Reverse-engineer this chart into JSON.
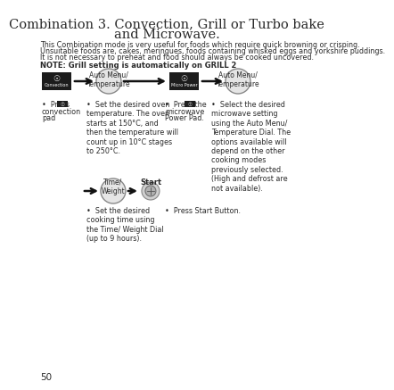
{
  "title_line1": "Combination 3. Convection, Grill or Turbo bake",
  "title_line2": "and Microwave.",
  "title_fontsize": 10.5,
  "body_text_line1": "This Combination mode is very useful for foods which require quick browning or crisping.",
  "body_text_line2": "Unsuitable foods are, cakes, meringues, foods containing whisked eggs and yorkshire puddings.",
  "body_text_line3": "It is not necessary to preheat and food should always be cooked uncovered.",
  "note_text": "NOTE: Grill setting is automatically on GRILL 2",
  "body_fontsize": 5.8,
  "note_fontsize": 6.0,
  "page_number": "50",
  "bg_color": "#ffffff",
  "text_color": "#2a2a2a",
  "label_fontsize": 5.5,
  "bullet_fontsize": 5.8,
  "btn1_label": "Convection",
  "btn2_label": "Micro Power",
  "label_automenu1": "Auto Menu/\nTemperature",
  "label_automenu2": "Auto Menu/\nTemperature",
  "label_timeweight": "Time/\nWeight",
  "label_start": "Start",
  "b1a_line1": "•  Press",
  "b1a_line2": "convection",
  "b1a_line3": "pad",
  "b1b": "•  Set the desired oven\ntemperature. The oven\nstarts at 150°C, and\nthen the temperature will\ncount up in 10°C stages\nto 250°C.",
  "b2a_line1": "•  Press the",
  "b2a_line2": "microwave",
  "b2a_line3": "Power Pad.",
  "b2b": "•  Select the desired\nmicrowave setting\nusing the Auto Menu/\nTemperature Dial. The\noptions available will\ndepend on the other\ncooking modes\npreviously selected.\n(High and defrost are\nnot available).",
  "b3a": "•  Set the desired\ncooking time using\nthe Time/ Weight Dial\n(up to 9 hours).",
  "b3b": "•  Press Start Button.",
  "arrow_color": "#111111",
  "circle_face": "#e5e5e5",
  "circle_edge": "#888888",
  "btn_face": "#1c1c1c"
}
